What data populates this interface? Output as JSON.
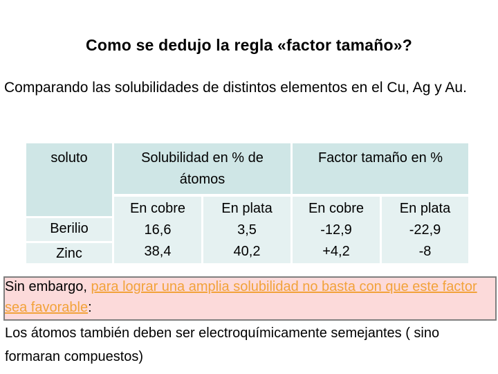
{
  "title": "Como se dedujo la regla «factor tamaño»?",
  "intro": "Comparando las solubilidades de distintos elementos en el Cu, Ag y Au.",
  "table": {
    "soluto_header": "soluto",
    "solubilidad_header": "Solubilidad en % de átomos",
    "factor_header": "Factor tamaño en %",
    "sub_cobre_1": "En cobre",
    "sub_plata_1": "En plata",
    "sub_cobre_2": "En cobre",
    "sub_plata_2": "En plata",
    "rows": [
      {
        "soluto": "Berilio",
        "sol_cobre": "16,6",
        "sol_plata": "3,5",
        "fac_cobre": "-12,9",
        "fac_plata": "-22,9"
      },
      {
        "soluto": "Zinc",
        "sol_cobre": "38,4",
        "sol_plata": "40,2",
        "fac_cobre": "+4,2",
        "fac_plata": "-8"
      }
    ]
  },
  "highlight": {
    "lead": "Sin embargo, ",
    "orange": "para lograr una amplia solubilidad no basta con que este factor sea favorable",
    "end": ":"
  },
  "tail": "Los átomos también deben ser electroquímicamente semejantes ( sino formaran compuestos)",
  "colors": {
    "cell": "#cfe6e6",
    "highlight_bg": "#fcdada",
    "highlight_text": "#f2a23a"
  }
}
